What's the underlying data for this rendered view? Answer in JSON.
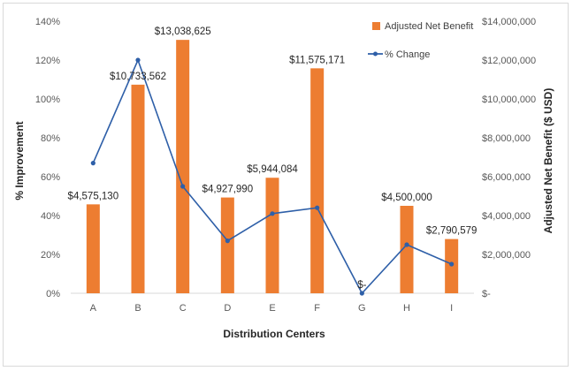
{
  "chart_data": {
    "type": "bar+line",
    "xlabel": "Distribution Centers",
    "ylabel_left": "% Improvement",
    "ylabel_right": "Adjusted Net Benefit ($ USD)",
    "categories": [
      "A",
      "B",
      "C",
      "D",
      "E",
      "F",
      "G",
      "H",
      "I"
    ],
    "left_axis": {
      "min": 0,
      "max": 140,
      "step": 20,
      "tick_labels": [
        "0%",
        "20%",
        "40%",
        "60%",
        "80%",
        "100%",
        "120%",
        "140%"
      ]
    },
    "right_axis": {
      "min": 0,
      "max": 14000000,
      "step": 2000000,
      "tick_labels": [
        "$-",
        "$2,000,000",
        "$4,000,000",
        "$6,000,000",
        "$8,000,000",
        "$10,000,000",
        "$12,000,000",
        "$14,000,000"
      ]
    },
    "series": [
      {
        "name": "Adjusted Net Benefit",
        "type": "bar",
        "axis": "right",
        "color": "#ED7D31",
        "values": [
          4575130,
          10733562,
          13038625,
          4927990,
          5944084,
          11575171,
          0,
          4500000,
          2790579
        ],
        "labels": [
          "$4,575,130",
          "$10,733,562",
          "$13,038,625",
          "$4,927,990",
          "$5,944,084",
          "$11,575,171",
          "$-",
          "$4,500,000",
          "$2,790,579"
        ]
      },
      {
        "name": "% Change",
        "type": "line",
        "axis": "left",
        "color": "#2E5FA8",
        "values": [
          67,
          120,
          55,
          27,
          41,
          44,
          0,
          25,
          15
        ]
      }
    ],
    "legend_position": "top-right"
  }
}
